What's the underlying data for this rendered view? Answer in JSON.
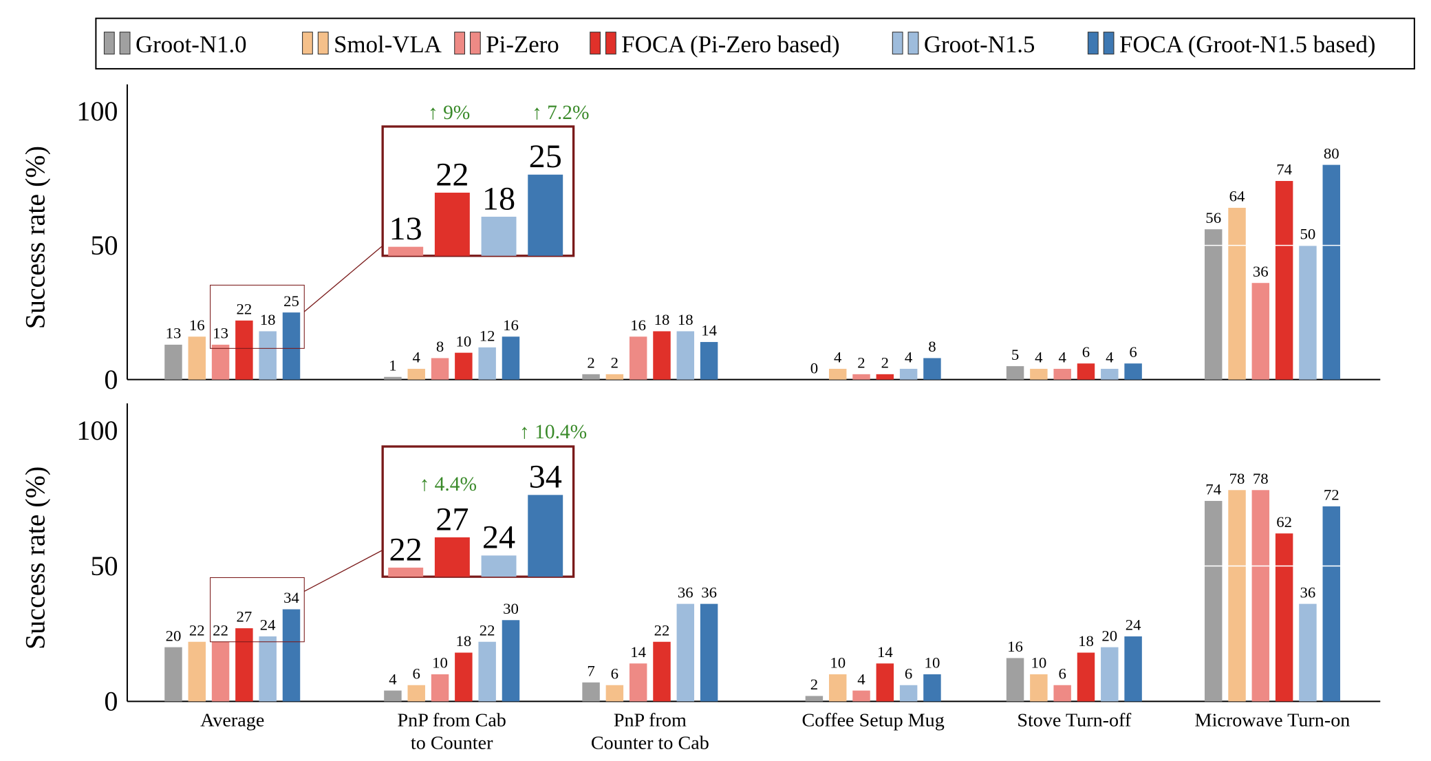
{
  "chart_data": [
    {
      "type": "bar",
      "ylabel": "Success rate (%)",
      "ylim": [
        0,
        110
      ],
      "yticks": [
        0,
        50,
        100
      ],
      "grid": true,
      "series": [
        {
          "name": "Groot-N1.0",
          "color": "#a0a0a0",
          "values": [
            13,
            1,
            2,
            0,
            5,
            56
          ]
        },
        {
          "name": "Smol-VLA",
          "color": "#f5c08a",
          "values": [
            16,
            4,
            2,
            4,
            4,
            64
          ]
        },
        {
          "name": "Pi-Zero",
          "color": "#ee8a85",
          "values": [
            13,
            8,
            16,
            2,
            4,
            36
          ]
        },
        {
          "name": "FOCA (Pi-Zero based)",
          "color": "#e0312a",
          "values": [
            22,
            10,
            18,
            2,
            6,
            74
          ]
        },
        {
          "name": "Groot-N1.5",
          "color": "#9ebcdc",
          "values": [
            18,
            12,
            18,
            4,
            4,
            50
          ]
        },
        {
          "name": "FOCA (Groot-N1.5 based)",
          "color": "#3e78b2",
          "values": [
            25,
            16,
            14,
            8,
            6,
            80
          ]
        }
      ],
      "annotations": [
        "↑ 9%",
        "↑ 7.2%"
      ]
    },
    {
      "type": "bar",
      "ylabel": "Success rate (%)",
      "ylim": [
        0,
        110
      ],
      "yticks": [
        0,
        50,
        100
      ],
      "grid": true,
      "categories": [
        "Average",
        "PnP from Cab\nto Counter",
        "PnP from\nCounter to Cab",
        "Coffee Setup Mug",
        "Stove Turn-off",
        "Microwave Turn-on"
      ],
      "series": [
        {
          "color": "#a0a0a0",
          "values": [
            20,
            4,
            7,
            2,
            16,
            74
          ]
        },
        {
          "color": "#f5c08a",
          "values": [
            22,
            6,
            6,
            10,
            10,
            78
          ]
        },
        {
          "color": "#ee8a85",
          "values": [
            22,
            10,
            14,
            4,
            6,
            78
          ]
        },
        {
          "color": "#e0312a",
          "values": [
            27,
            18,
            22,
            14,
            18,
            62
          ]
        },
        {
          "color": "#9ebcdc",
          "values": [
            24,
            22,
            36,
            6,
            20,
            36
          ]
        },
        {
          "color": "#3e78b2",
          "values": [
            34,
            30,
            36,
            10,
            24,
            72
          ]
        }
      ],
      "annotations": [
        "↑ 10.4%",
        "↑ 4.4%"
      ]
    }
  ]
}
